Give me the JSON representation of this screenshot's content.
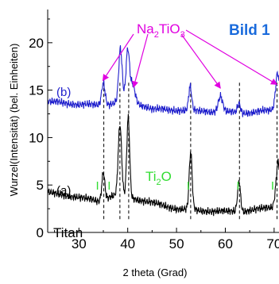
{
  "chart_data": {
    "type": "line",
    "title": "Bild 1",
    "xlabel": "2 theta (Grad)",
    "ylabel": "Wurzel(Intensität) (bel. Einheiten)",
    "xlim": [
      23.6,
      71.0
    ],
    "ylim": [
      0,
      23.5
    ],
    "xticks": [
      30,
      40,
      50,
      60,
      70
    ],
    "yticks": [
      0,
      5,
      10,
      15,
      20
    ],
    "grid": false,
    "colors": {
      "b": "#1f1fcc",
      "a": "#000000",
      "na2tio3": "#e000e0",
      "ti2o": "#33dd33",
      "title": "#1a6bdc"
    },
    "series": [
      {
        "name": "(b)",
        "color": "#1f1fcc",
        "baseline": [
          [
            23.6,
            13.8
          ],
          [
            30.0,
            13.5
          ],
          [
            35.0,
            13.4
          ],
          [
            40.0,
            14.0
          ],
          [
            45.0,
            13.0
          ],
          [
            50.0,
            12.9
          ],
          [
            55.0,
            12.8
          ],
          [
            60.0,
            12.7
          ],
          [
            65.0,
            12.6
          ],
          [
            71.0,
            13.0
          ]
        ],
        "peaks": [
          [
            35.0,
            2.4,
            0.35
          ],
          [
            38.5,
            5.5,
            0.35
          ],
          [
            40.0,
            5.1,
            0.35
          ],
          [
            41.0,
            1.8,
            0.5
          ],
          [
            52.8,
            2.5,
            0.3
          ],
          [
            59.0,
            1.6,
            0.45
          ],
          [
            62.8,
            1.0,
            0.3
          ],
          [
            70.7,
            3.9,
            0.4
          ]
        ]
      },
      {
        "name": "(a)",
        "color": "#000000",
        "baseline": [
          [
            23.6,
            4.2
          ],
          [
            30.0,
            3.7
          ],
          [
            34.0,
            3.3
          ],
          [
            37.0,
            3.9
          ],
          [
            42.0,
            3.5
          ],
          [
            46.0,
            3.0
          ],
          [
            50.0,
            2.5
          ],
          [
            55.0,
            2.3
          ],
          [
            60.0,
            2.2
          ],
          [
            65.0,
            2.3
          ],
          [
            71.0,
            2.8
          ]
        ],
        "peaks": [
          [
            35.0,
            2.9,
            0.3
          ],
          [
            38.4,
            7.5,
            0.35
          ],
          [
            40.1,
            8.4,
            0.3
          ],
          [
            52.9,
            6.0,
            0.3
          ],
          [
            62.8,
            3.2,
            0.3
          ],
          [
            70.5,
            2.0,
            0.35
          ],
          [
            70.9,
            3.5,
            0.3
          ]
        ]
      }
    ],
    "reference_lines_2theta": [
      35.1,
      38.4,
      40.2,
      52.9,
      62.9,
      70.6
    ],
    "annotations": {
      "title": "Bild 1",
      "na2tio3_label": "Na",
      "na2tio3_sub1": "2",
      "na2tio3_mid": "TiO",
      "na2tio3_sub2": "3",
      "na2tio3_arrow_targets": [
        [
          34.9,
          16.0
        ],
        [
          41.2,
          15.3
        ],
        [
          59.0,
          15.2
        ],
        [
          70.6,
          15.6
        ]
      ],
      "ti2o_label": "Ti",
      "ti2o_sub": "2",
      "ti2o_end": "O",
      "ti2o_marker": "I",
      "ti2o_marker_positions": [
        [
          33.8,
          5.0
        ],
        [
          36.2,
          5.0
        ],
        [
          52.4,
          5.0
        ],
        [
          62.6,
          5.0
        ],
        [
          69.7,
          5.0
        ]
      ],
      "label_b": "(b)",
      "label_a": "(a)",
      "label_titan": "Titan"
    }
  }
}
